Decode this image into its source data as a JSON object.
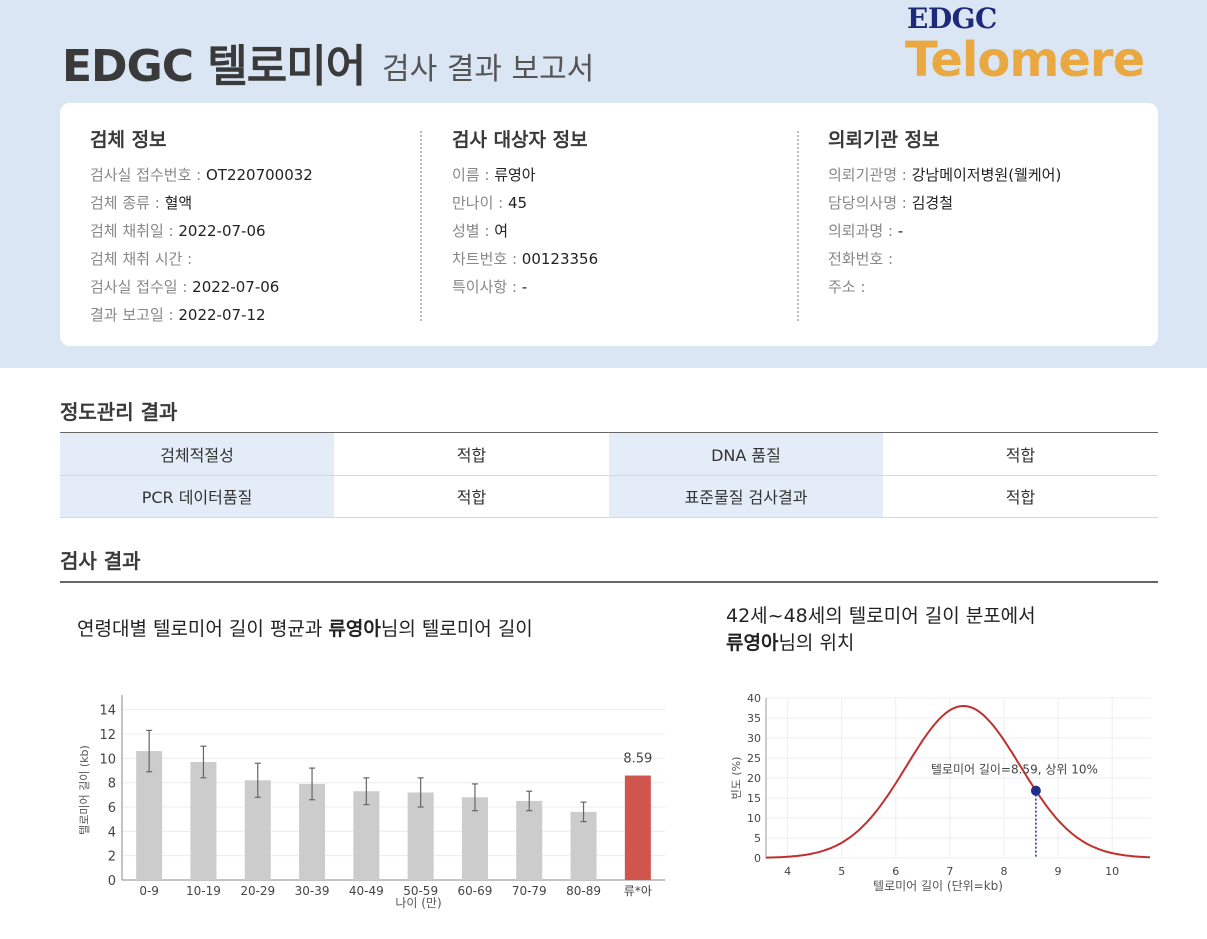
{
  "header": {
    "title_main": "EDGC 텔로미어",
    "title_sub": "검사 결과 보고서",
    "logo_top": "EDGC",
    "logo_bottom": "Telomere"
  },
  "specimen": {
    "title": "검체 정보",
    "rows": [
      {
        "label": "검사실 접수번호 : ",
        "value": "OT220700032"
      },
      {
        "label": "검체 종류 : ",
        "value": "혈액"
      },
      {
        "label": "검체 채취일 : ",
        "value": "2022-07-06"
      },
      {
        "label": "검체 채취 시간 : ",
        "value": ""
      },
      {
        "label": "검사실 접수일 : ",
        "value": "2022-07-06"
      },
      {
        "label": "결과 보고일 : ",
        "value": "2022-07-12"
      }
    ]
  },
  "subject": {
    "title": "검사 대상자 정보",
    "rows": [
      {
        "label": "이름 : ",
        "value": "류영아"
      },
      {
        "label": "만나이 : ",
        "value": "45"
      },
      {
        "label": "성별 : ",
        "value": "여"
      },
      {
        "label": "차트번호 : ",
        "value": "00123356"
      },
      {
        "label": "특이사항 : ",
        "value": "-"
      }
    ]
  },
  "institution": {
    "title": "의뢰기관 정보",
    "rows": [
      {
        "label": "의뢰기관명 : ",
        "value": "강남메이저병원(웰케어)"
      },
      {
        "label": "담당의사명 : ",
        "value": "김경철"
      },
      {
        "label": "의뢰과명 : ",
        "value": "-"
      },
      {
        "label": "전화번호 : ",
        "value": ""
      },
      {
        "label": "주소 : ",
        "value": ""
      }
    ]
  },
  "qc": {
    "title": "정도관리 결과",
    "rows": [
      [
        {
          "label": "검체적절성",
          "value": "적합"
        },
        {
          "label": "DNA 품질",
          "value": "적합"
        }
      ],
      [
        {
          "label": "PCR 데이터품질",
          "value": "적합"
        },
        {
          "label": "표준물질 검사결과",
          "value": "적합"
        }
      ]
    ]
  },
  "results": {
    "title": "검사 결과",
    "left_head_pre": "연령대별 텔로미어 길이 평균과 ",
    "left_head_name": "류영아",
    "left_head_post": "님의 텔로미어 길이",
    "right_head_line1": "42세~48세의 텔로미어 길이 분포에서",
    "right_head_name": "류영아",
    "right_head_post": "님의 위치"
  },
  "colors": {
    "band": "#dbe6f4",
    "bar_gray": "#cccccc",
    "bar_red": "#d0554d",
    "curve": "#c0302f",
    "marker": "#1f2f8c"
  },
  "chart_data": [
    {
      "type": "bar",
      "categories": [
        "0-9",
        "10-19",
        "20-29",
        "30-39",
        "40-49",
        "50-59",
        "60-69",
        "70-79",
        "80-89",
        "류*아"
      ],
      "values": [
        10.6,
        9.7,
        8.2,
        7.9,
        7.3,
        7.2,
        6.8,
        6.5,
        5.6,
        8.59
      ],
      "errors": [
        1.7,
        1.3,
        1.4,
        1.3,
        1.1,
        1.2,
        1.1,
        0.8,
        0.8,
        0
      ],
      "highlight_index": 9,
      "highlight_label": "8.59",
      "xlabel": "나이 (만)",
      "ylabel": "텔로미어 길이 (kb)",
      "yticks": [
        0,
        2,
        4,
        6,
        8,
        10,
        12,
        14
      ],
      "ylim": [
        0,
        14.8
      ],
      "grid": true
    },
    {
      "type": "line",
      "distribution": "normal",
      "mean": 7.25,
      "sd": 1.05,
      "peak": 38,
      "xlim": [
        3.6,
        10.7
      ],
      "ylim": [
        0,
        40
      ],
      "xticks": [
        4,
        5,
        6,
        7,
        8,
        9,
        10
      ],
      "yticks": [
        0,
        5,
        10,
        15,
        20,
        25,
        30,
        35,
        40
      ],
      "marker_x": 8.59,
      "annotation": "텔로미어 길이=8.59, 상위 10%",
      "xlabel": "텔로미어 길이 (단위=kb)",
      "ylabel": "빈도 (%)",
      "grid": true
    }
  ]
}
